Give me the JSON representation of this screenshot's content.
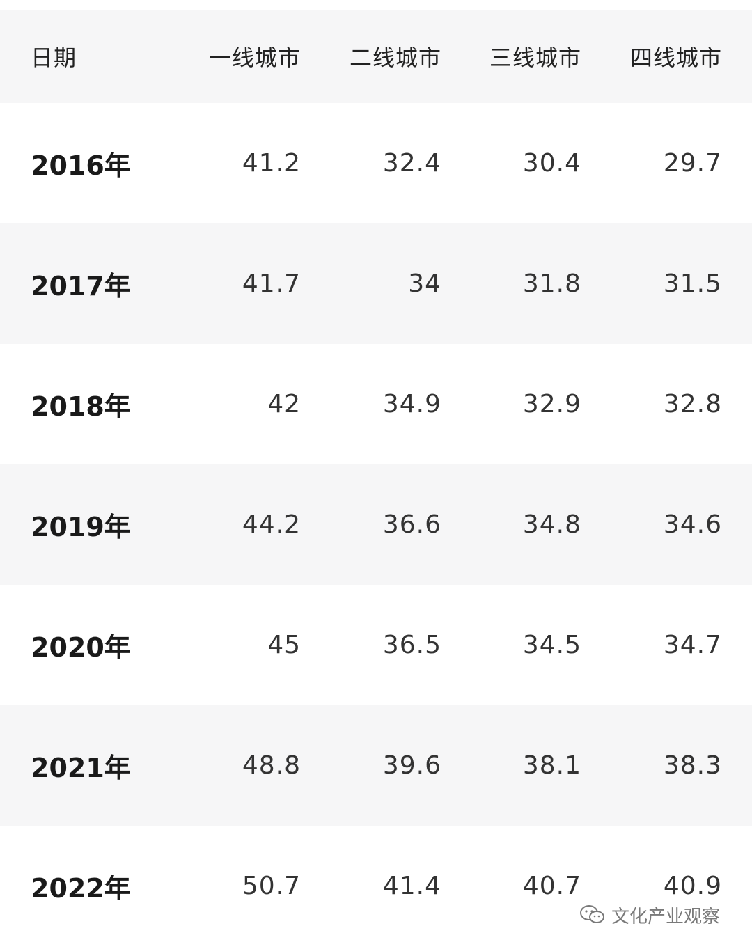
{
  "chart_data": {
    "type": "table",
    "columns": [
      "日期",
      "一线城市",
      "二线城市",
      "三线城市",
      "四线城市"
    ],
    "rows": [
      [
        "2016年",
        "41.2",
        "32.4",
        "30.4",
        "29.7"
      ],
      [
        "2017年",
        "41.7",
        "34",
        "31.8",
        "31.5"
      ],
      [
        "2018年",
        "42",
        "34.9",
        "32.9",
        "32.8"
      ],
      [
        "2019年",
        "44.2",
        "36.6",
        "34.8",
        "34.6"
      ],
      [
        "2020年",
        "45",
        "36.5",
        "34.5",
        "34.7"
      ],
      [
        "2021年",
        "48.8",
        "39.6",
        "38.1",
        "38.3"
      ],
      [
        "2022年",
        "50.7",
        "41.4",
        "40.7",
        "40.9"
      ]
    ]
  },
  "style": {
    "header_bg": "#f6f6f7",
    "row_bg_odd": "#ffffff",
    "row_bg_even": "#f6f6f7",
    "text_color": "#333333"
  },
  "watermark": {
    "text": "文化产业观察",
    "icon": "wechat-icon"
  }
}
